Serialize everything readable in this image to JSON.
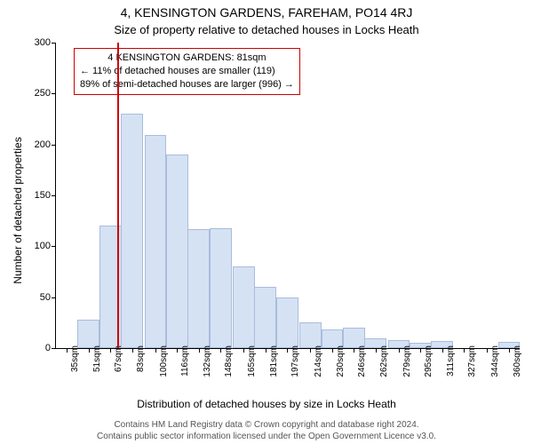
{
  "title_line1": "4, KENSINGTON GARDENS, FAREHAM, PO14 4RJ",
  "title_line2": "Size of property relative to detached houses in Locks Heath",
  "ylabel": "Number of detached properties",
  "xlabel": "Distribution of detached houses by size in Locks Heath",
  "footer_line1": "Contains HM Land Registry data © Crown copyright and database right 2024.",
  "footer_line2": "Contains public sector information licensed under the Open Government Licence v3.0.",
  "chart": {
    "type": "histogram",
    "ylim": [
      0,
      300
    ],
    "ytick_step": 50,
    "bar_fill": "#d5e2f3",
    "bar_stroke": "#a9bcdc",
    "background": "#ffffff",
    "bins": [
      {
        "x": 35,
        "count": 0
      },
      {
        "x": 51,
        "count": 28
      },
      {
        "x": 67,
        "count": 120
      },
      {
        "x": 83,
        "count": 230
      },
      {
        "x": 100,
        "count": 209
      },
      {
        "x": 116,
        "count": 190
      },
      {
        "x": 132,
        "count": 117
      },
      {
        "x": 148,
        "count": 118
      },
      {
        "x": 165,
        "count": 80
      },
      {
        "x": 181,
        "count": 60
      },
      {
        "x": 197,
        "count": 50
      },
      {
        "x": 214,
        "count": 25
      },
      {
        "x": 230,
        "count": 18
      },
      {
        "x": 246,
        "count": 20
      },
      {
        "x": 262,
        "count": 10
      },
      {
        "x": 279,
        "count": 8
      },
      {
        "x": 295,
        "count": 5
      },
      {
        "x": 311,
        "count": 7
      },
      {
        "x": 327,
        "count": 0
      },
      {
        "x": 344,
        "count": 0
      },
      {
        "x": 360,
        "count": 6
      }
    ],
    "x_tick_suffix": "sqm",
    "marker": {
      "value": 81,
      "color": "#cc0000"
    },
    "annotation": {
      "border_color": "#cc0000",
      "line1": "4 KENSINGTON GARDENS: 81sqm",
      "line2": "← 11% of detached houses are smaller (119)",
      "line3": "89% of semi-detached houses are larger (996) →"
    }
  }
}
